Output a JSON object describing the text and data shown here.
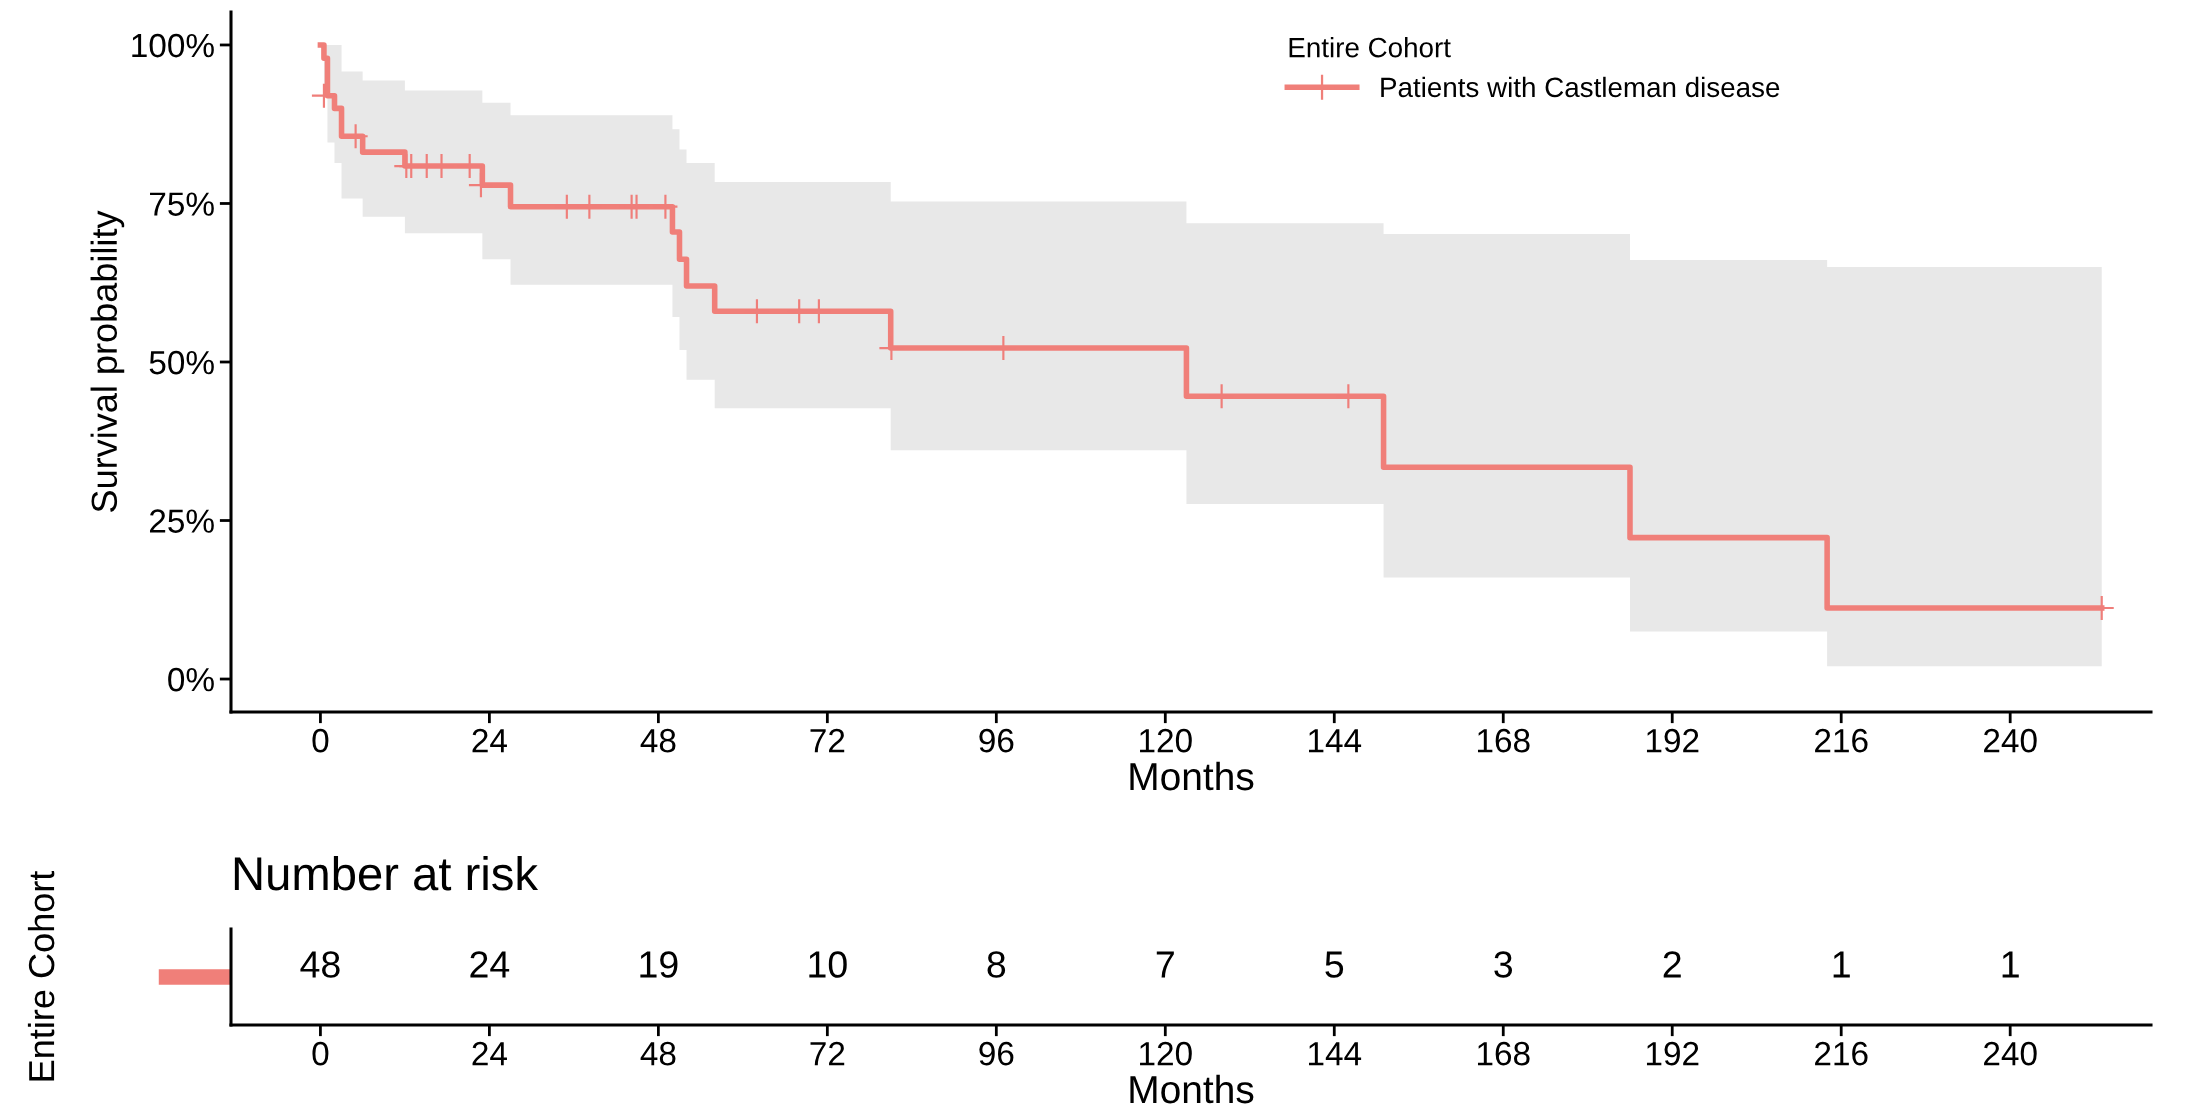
{
  "chart_data": [
    {
      "type": "step",
      "xlabel": "Months",
      "ylabel": "Survival probability",
      "legend_title": "Entire Cohort",
      "legend": "top right",
      "xlim": [
        -12.7,
        260
      ],
      "xticks": [
        0,
        24,
        48,
        72,
        96,
        120,
        144,
        168,
        192,
        216,
        240
      ],
      "ylim": [
        -5.2,
        105.2
      ],
      "yticks": [
        {
          "value": 0,
          "label": "0%"
        },
        {
          "value": 25,
          "label": "25%"
        },
        {
          "value": 50,
          "label": "50%"
        },
        {
          "value": 75,
          "label": "75%"
        },
        {
          "value": 100,
          "label": "100%"
        }
      ],
      "series": [
        {
          "name": "Patients with Castleman disease",
          "type": "step",
          "color": "#f07f79",
          "marker": "none",
          "line_style": "solid",
          "x": [
            0,
            0.5,
            1,
            2,
            3,
            6,
            12,
            23,
            27,
            50,
            51,
            52,
            56,
            81,
            123,
            151,
            186,
            214,
            253
          ],
          "values": [
            100,
            97.9,
            92.0,
            90.0,
            85.6,
            83.1,
            80.9,
            77.9,
            74.5,
            70.5,
            66.2,
            62.0,
            58.0,
            52.2,
            44.6,
            33.4,
            22.3,
            11.2,
            11.2
          ],
          "upper": [
            100,
            100,
            100,
            100,
            95.8,
            94.4,
            92.8,
            90.9,
            88.9,
            86.7,
            83.5,
            81.4,
            78.4,
            75.3,
            71.9,
            70.2,
            66.1,
            65.0,
            65.0
          ],
          "lower": [
            100,
            93.8,
            84.6,
            81.4,
            75.8,
            72.9,
            70.3,
            66.2,
            62.2,
            57.1,
            51.9,
            47.2,
            42.7,
            36.1,
            27.6,
            16.0,
            7.5,
            2.0,
            2.0
          ]
        },
        {
          "type": "scatter",
          "color": "#ef7e7a",
          "marker": "cross",
          "x": [
            0.5,
            5,
            12.2,
            12.9,
            15.1,
            17.2,
            21.2,
            22.8,
            35,
            38.2,
            44.2,
            44.9,
            49,
            62,
            68,
            70.8,
            81.1,
            97,
            128,
            146,
            253
          ],
          "values": [
            92.0,
            85.6,
            80.9,
            80.9,
            80.9,
            80.9,
            80.9,
            77.9,
            74.5,
            74.5,
            74.5,
            74.5,
            74.5,
            58.0,
            58.0,
            58.0,
            52.2,
            52.2,
            44.6,
            44.6,
            11.2
          ]
        }
      ]
    },
    {
      "type": "heatmap",
      "title": "Number at risk",
      "xlabel": "Months",
      "ylabel": "Entire Cohort",
      "tick_labels": "x",
      "data_labels": true,
      "color": "#f07f79",
      "categories": [
        "0",
        "24",
        "48",
        "72",
        "96",
        "120",
        "144",
        "168",
        "192",
        "216",
        "240"
      ],
      "y_categories": [
        null
      ],
      "cells": [
        [
          48,
          24,
          19,
          10,
          8,
          7,
          5,
          3,
          2,
          1,
          1
        ]
      ]
    }
  ]
}
